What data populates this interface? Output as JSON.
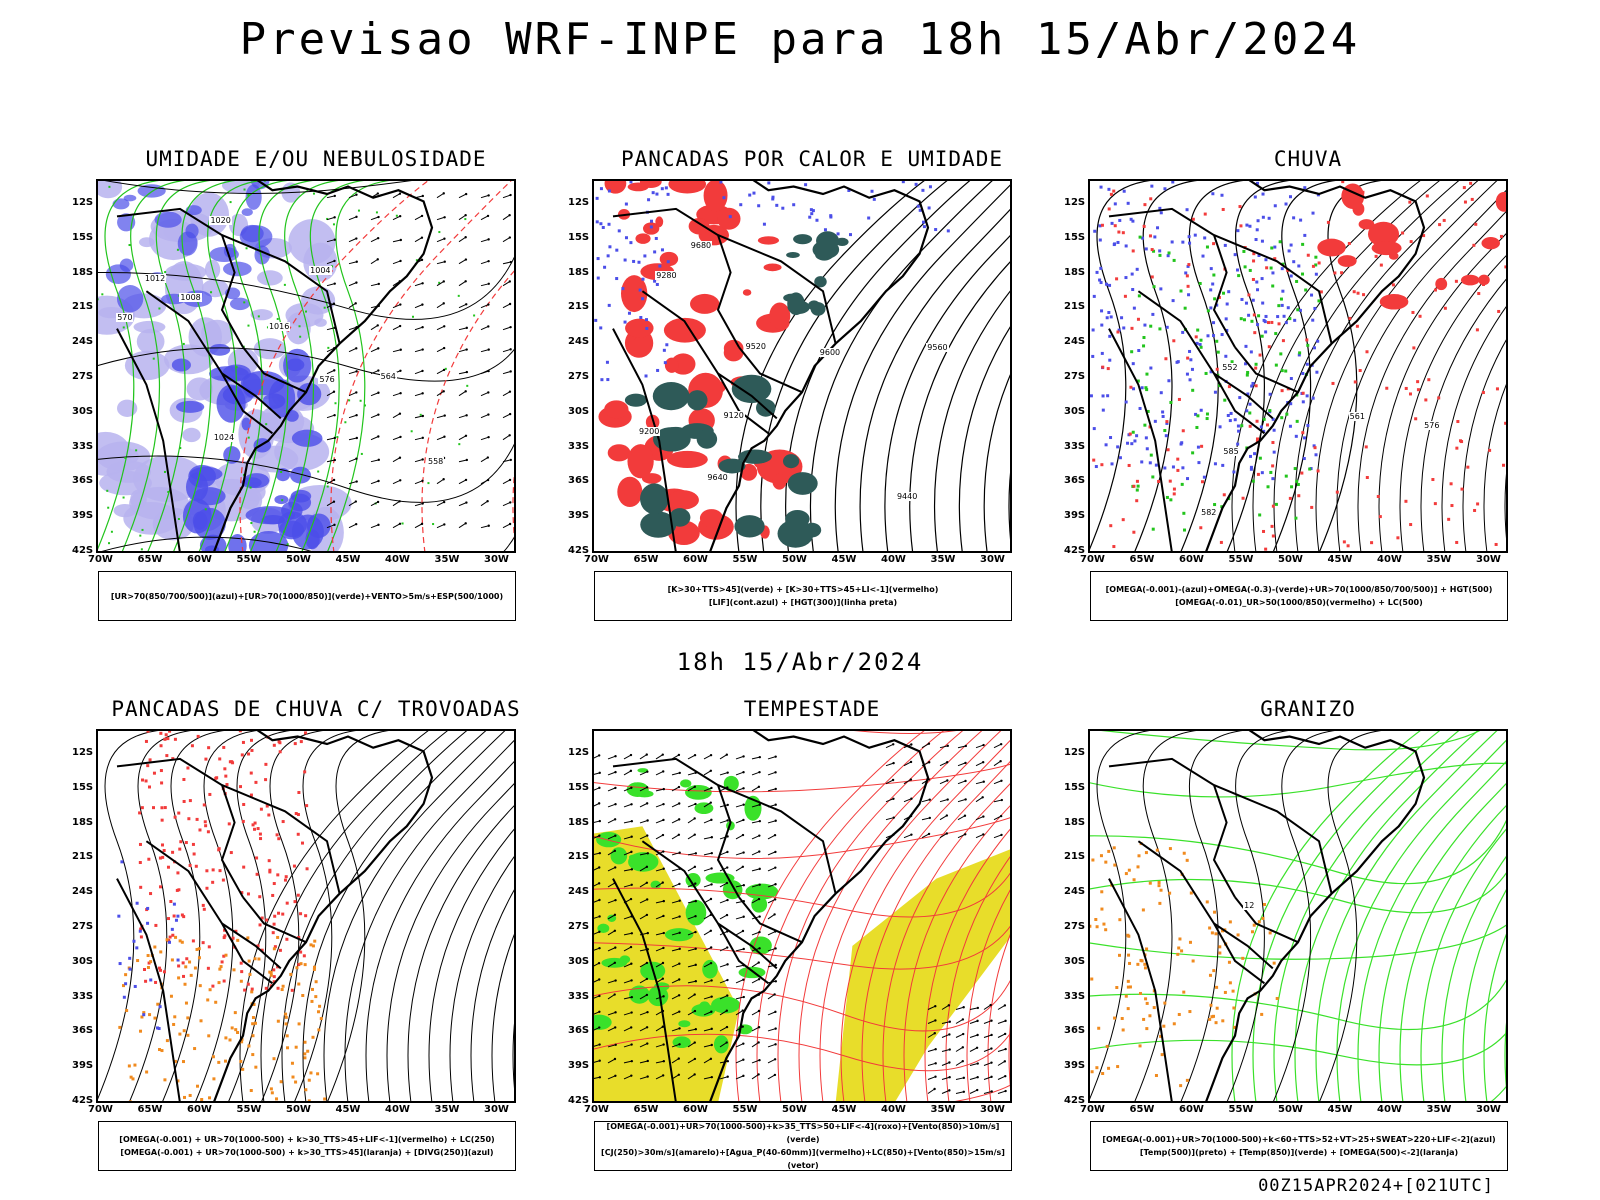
{
  "header": {
    "title": "Previsao WRF-INPE  para 18h 15/Abr/2024",
    "mid_title": "18h 15/Abr/2024",
    "footer": "00Z15APR2024+[021UTC]"
  },
  "axes": {
    "lat_labels": [
      "12S",
      "15S",
      "18S",
      "21S",
      "24S",
      "27S",
      "30S",
      "33S",
      "36S",
      "39S",
      "42S"
    ],
    "lon_labels": [
      "70W",
      "65W",
      "60W",
      "55W",
      "50W",
      "45W",
      "40W",
      "35W",
      "30W"
    ]
  },
  "panels": [
    {
      "title": "UMIDADE E/OU NEBULOSIDADE",
      "legend": [
        "[UR>70(850/700/500)](azul)+[UR>70(1000/850)](verde)+VENTO>5m/s+ESP(500/1000)"
      ],
      "contour_labels": [
        "1008",
        "1012",
        "1016",
        "1020",
        "1024",
        "1004",
        "570",
        "576",
        "558",
        "564"
      ]
    },
    {
      "title": "PANCADAS POR CALOR E UMIDADE",
      "legend": [
        "[K>30+TTS>45](verde) + [K>30+TTS>45+LI<-1](vermelho)",
        "[LIF](cont.azul) + [HGT(300)](linha preta)"
      ],
      "contour_labels": [
        "9680",
        "9560",
        "9520",
        "9440",
        "9200",
        "9280",
        "9600",
        "9640",
        "9120"
      ]
    },
    {
      "title": "CHUVA",
      "legend": [
        "[OMEGA(-0.001)-(azul)+OMEGA(-0.3)-(verde)+UR>70(1000/850/700/500)] + HGT(500)",
        "[OMEGA(-0.01)_UR>50(1000/850)(vermelho) + LC(500)"
      ],
      "contour_labels": [
        "582",
        "561",
        "552",
        "585",
        "576"
      ]
    },
    {
      "title": "PANCADAS DE CHUVA C/ TROVOADAS",
      "legend": [
        "[OMEGA(-0.001) + UR>70(1000-500) + k>30_TTS>45+LIF<-1](vermelho) + LC(250)",
        "[OMEGA(-0.001) + UR>70(1000-500) + k>30_TTS>45](laranja) + [DIVG(250)](azul)"
      ],
      "contour_labels": []
    },
    {
      "title": "TEMPESTADE",
      "legend": [
        "[OMEGA(-0.001)+UR>70(1000-500)+k>35_TTS>50+LIF<-4](roxo)+[Vento(850)>10m/s](verde)",
        "[CJ(250)>30m/s](amarelo)+[Agua_P(40-60mm)](vermelho)+LC(850)+[Vento(850)>15m/s](vetor)"
      ],
      "contour_labels": []
    },
    {
      "title": "GRANIZO",
      "legend": [
        "[OMEGA(-0.001)+UR>70(1000-500)+k<60+TTS>52+VT>25+SWEAT>220+LIF<-2](azul)",
        "[Temp(500)](preto) + [Temp(850)](verde) + [OMEGA(500)<-2](laranja)"
      ],
      "contour_labels": [
        "12"
      ]
    }
  ],
  "colors": {
    "blue_humidity": "#4b4ee8",
    "lavender": "#b7b3ee",
    "green": "#22c41c",
    "red": "#f23b3b",
    "dark_teal": "#2e5a58",
    "yellow": "#e8dd2a",
    "orange": "#f08a1e",
    "bright_green": "#3ae12a"
  }
}
